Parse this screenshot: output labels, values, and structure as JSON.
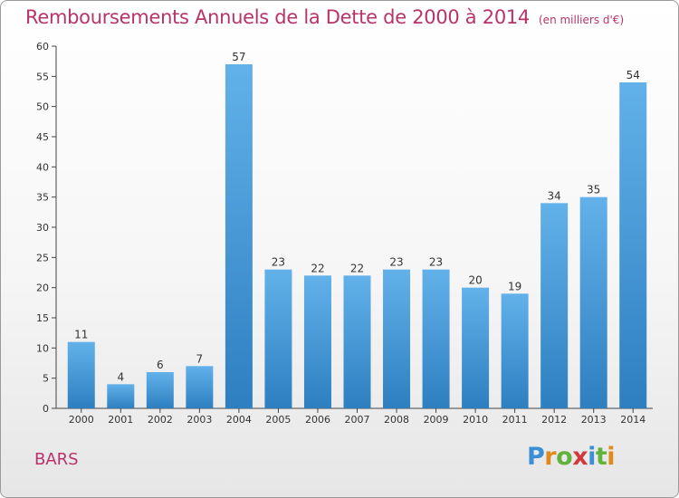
{
  "chart_data": {
    "type": "bar",
    "title": "Remboursements Annuels de la Dette de 2000 à 2014",
    "subtitle": "(en milliers d'€)",
    "categories": [
      "2000",
      "2001",
      "2002",
      "2003",
      "2004",
      "2005",
      "2006",
      "2007",
      "2008",
      "2009",
      "2010",
      "2011",
      "2012",
      "2013",
      "2014"
    ],
    "values": [
      11,
      4,
      6,
      7,
      57,
      23,
      22,
      22,
      23,
      23,
      20,
      19,
      34,
      35,
      54
    ],
    "ylim": [
      0,
      60
    ],
    "yticks": [
      0,
      5,
      10,
      15,
      20,
      25,
      30,
      35,
      40,
      45,
      50,
      55,
      60
    ],
    "grid": false,
    "bar_color_light": "#62b1ea",
    "bar_color_dark": "#2d7fc0"
  },
  "footer": {
    "town": "BARS",
    "logo_text": "Proxiti",
    "logo_colors": [
      "#3a8fd6",
      "#e08a1e",
      "#62b33d",
      "#d13a3a",
      "#3a8fd6",
      "#62b33d",
      "#e08a1e"
    ]
  }
}
